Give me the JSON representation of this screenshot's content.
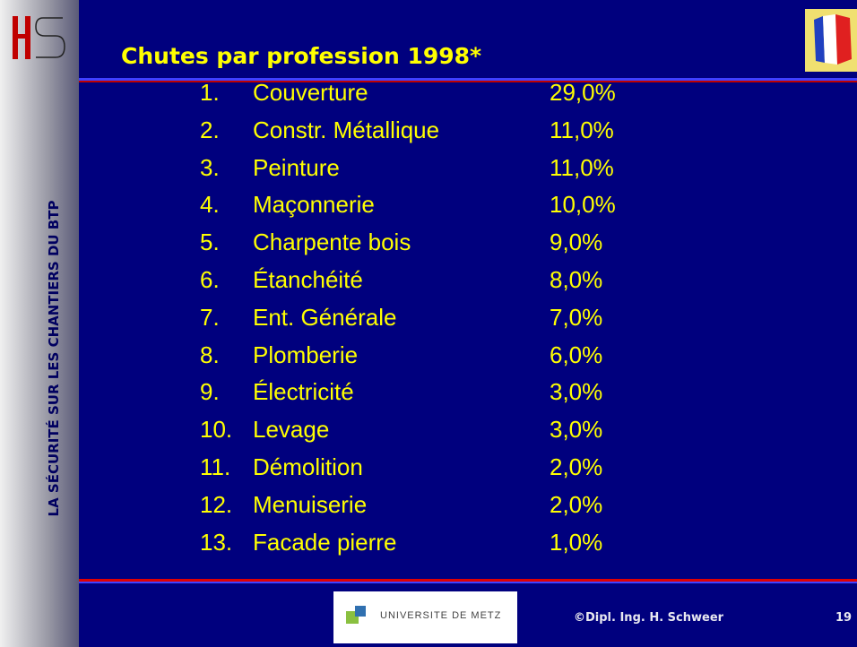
{
  "sidebar": {
    "text": "LA SÉCURITÉ SUR LES CHANTIERS DU BTP"
  },
  "header": {
    "title": "Chutes par profession 1998*"
  },
  "list": {
    "items": [
      {
        "number": "1.",
        "label": "Couverture",
        "value": "29,0%"
      },
      {
        "number": "2.",
        "label": "Constr. Métallique",
        "value": "11,0%"
      },
      {
        "number": "3.",
        "label": "Peinture",
        "value": "11,0%"
      },
      {
        "number": "4.",
        "label": "Maçonnerie",
        "value": "10,0%"
      },
      {
        "number": "5.",
        "label": "Charpente bois",
        "value": "9,0%"
      },
      {
        "number": "6.",
        "label": "Étanchéité",
        "value": "8,0%"
      },
      {
        "number": "7.",
        "label": "Ent. Générale",
        "value": "7,0%"
      },
      {
        "number": "8.",
        "label": "Plomberie",
        "value": "6,0%"
      },
      {
        "number": "9.",
        "label": "Électricité",
        "value": "3,0%"
      },
      {
        "number": "10.",
        "label": "Levage",
        "value": "3,0%"
      },
      {
        "number": "11.",
        "label": "Démolition",
        "value": "2,0%"
      },
      {
        "number": "12.",
        "label": "Menuiserie",
        "value": "2,0%"
      },
      {
        "number": "13.",
        "label": "Facade pierre",
        "value": "1,0%"
      }
    ]
  },
  "footer": {
    "logo": "UNIVERSITE DE METZ",
    "author": "©Dipl. Ing. H. Schweer",
    "page": "19"
  }
}
